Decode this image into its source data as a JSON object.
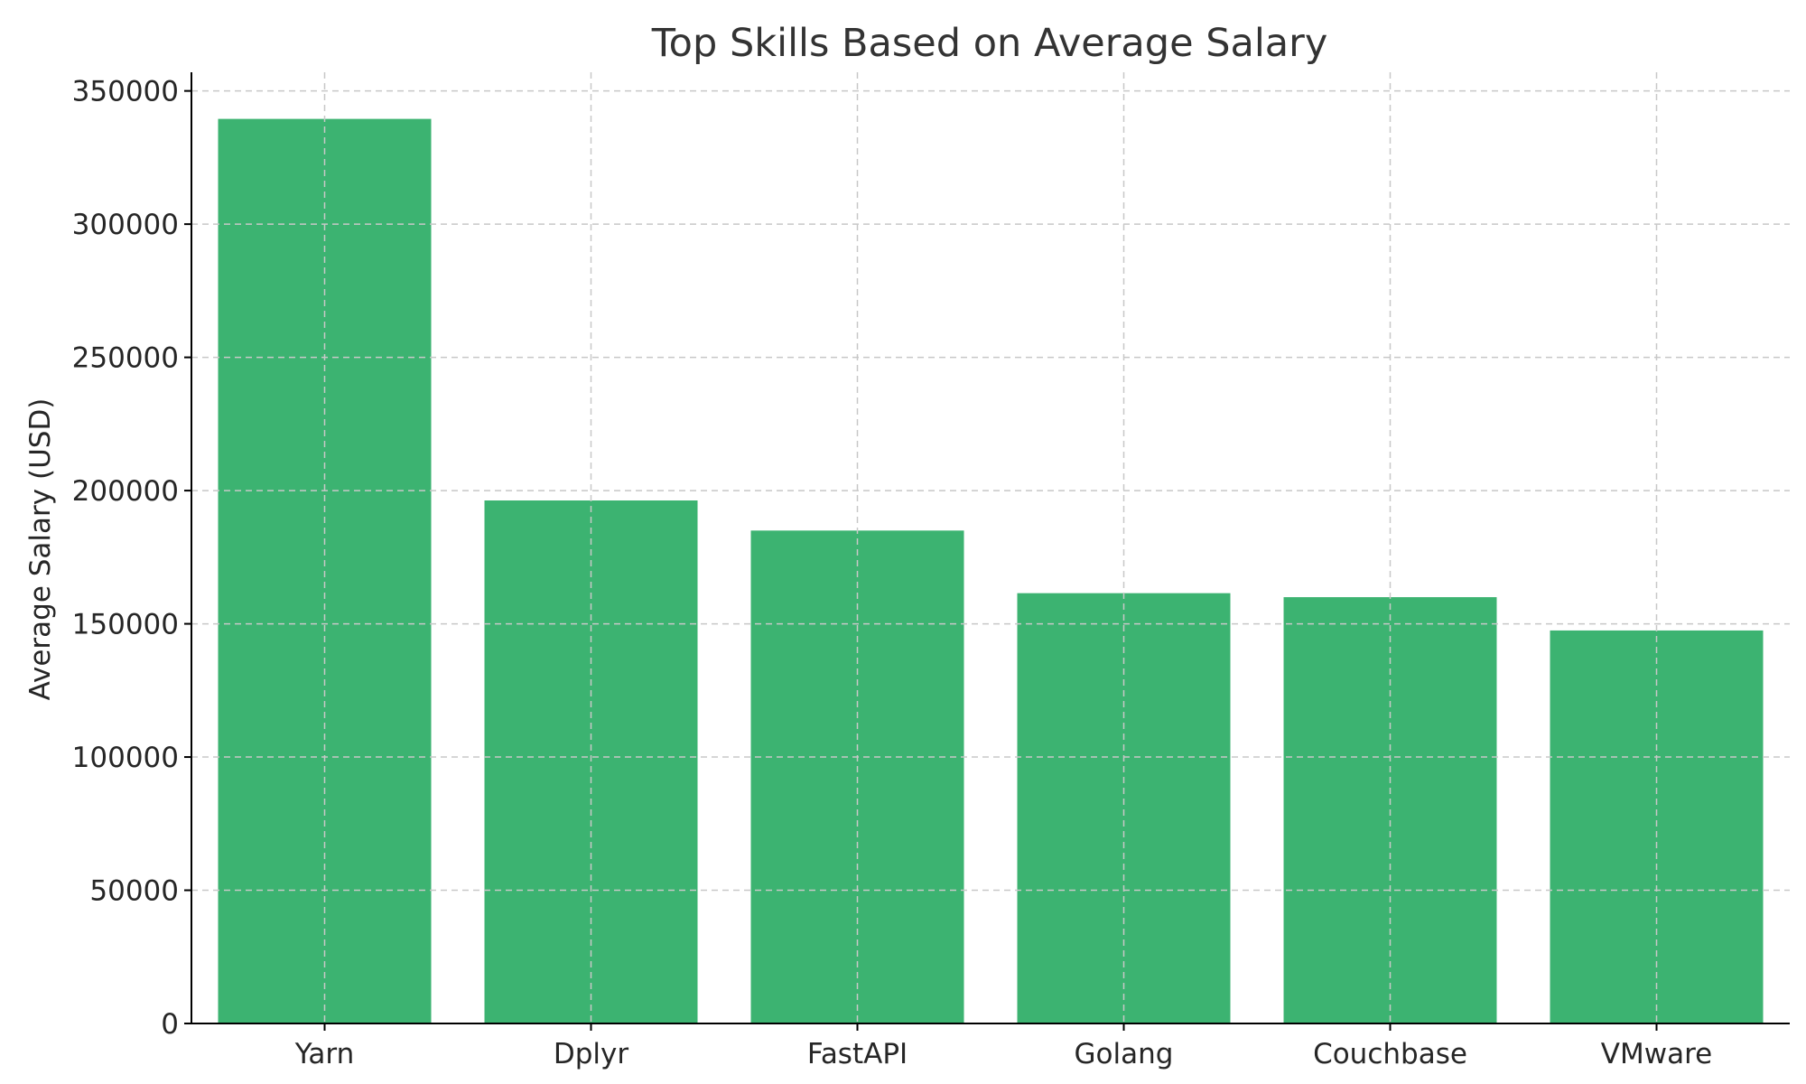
{
  "chart_data": {
    "type": "bar",
    "title": "Top Skills Based on Average Salary",
    "xlabel": "",
    "ylabel": "Average Salary (USD)",
    "categories": [
      "Yarn",
      "Dplyr",
      "FastAPI",
      "Golang",
      "Couchbase",
      "VMware"
    ],
    "values": [
      339500,
      196300,
      185000,
      161500,
      160000,
      147500
    ],
    "ylim": [
      0,
      357000
    ],
    "yticks": [
      0,
      50000,
      100000,
      150000,
      200000,
      250000,
      300000,
      350000
    ],
    "grid": true,
    "bar_color": "#3cb371"
  }
}
